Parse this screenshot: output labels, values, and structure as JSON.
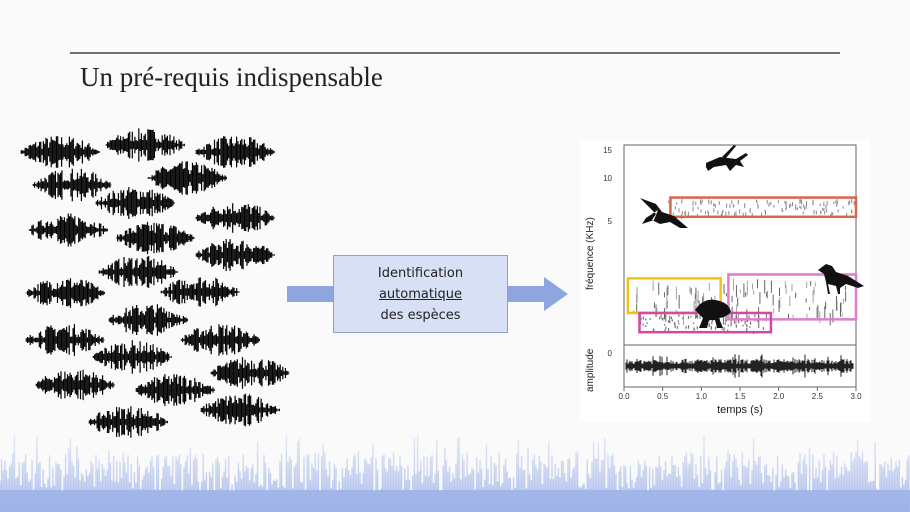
{
  "slide": {
    "title": "Un pré-requis indispensable",
    "process_box": {
      "line1": "Identification",
      "line2": "automatique",
      "line3": "des espèces"
    }
  },
  "chart_data": {
    "type": "spectrogram",
    "xlabel": "temps (s)",
    "ylabel_top": "fréquence (KHz)",
    "ylabel_bottom": "amplitude",
    "x_ticks": [
      "0.0",
      "0.5",
      "1.0",
      "1.5",
      "2.0",
      "2.5",
      "3.0"
    ],
    "y_ticks": [
      "15",
      "10",
      "5"
    ],
    "amplitude_tick": "0",
    "xlim": [
      0,
      3
    ],
    "annotation_boxes": [
      {
        "species": "grasshopper-icon",
        "color": "#d9654a",
        "t": [
          0.6,
          3.0
        ],
        "khz": [
          10,
          11.5
        ]
      },
      {
        "species": "bird-icon-flying",
        "color": "#f1c40f",
        "t": [
          0.05,
          1.25
        ],
        "khz": [
          2.5,
          5.2
        ]
      },
      {
        "species": "bird-icon-perched",
        "color": "#e07ccb",
        "t": [
          1.35,
          3.0
        ],
        "khz": [
          2.0,
          5.5
        ]
      },
      {
        "species": "frog-icon",
        "color": "#d347a8",
        "t": [
          0.2,
          1.9
        ],
        "khz": [
          1.0,
          2.5
        ]
      }
    ]
  },
  "colors": {
    "waveform": "#000000",
    "arrow": "#8ea6e0",
    "footer_waveform": "#9db2e8"
  }
}
